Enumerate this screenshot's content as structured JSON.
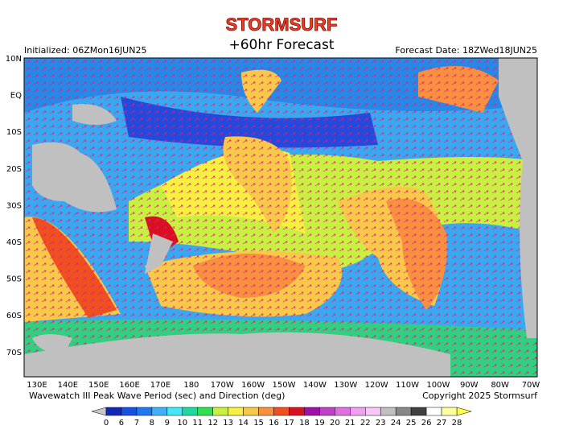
{
  "header": {
    "brand": "STORMSURF",
    "title": "+60hr Forecast",
    "initialized": "Initialized: 06ZMon16JUN25",
    "forecast_date": "Forecast Date: 18ZWed18JUN25"
  },
  "map": {
    "lat_labels": [
      "10N",
      "EQ",
      "10S",
      "20S",
      "30S",
      "40S",
      "50S",
      "60S",
      "70S"
    ],
    "lon_labels": [
      "130E",
      "140E",
      "150E",
      "160E",
      "170E",
      "180",
      "170W",
      "160W",
      "150W",
      "140W",
      "130W",
      "120W",
      "110W",
      "100W",
      "90W",
      "80W",
      "70W"
    ]
  },
  "footer": {
    "caption": "Wavewatch III Peak Wave Period (sec) and Direction (deg)",
    "copyright": "Copyright 2025 Stormsurf"
  },
  "colorbar": {
    "labels": [
      "0",
      "6",
      "7",
      "8",
      "9",
      "10",
      "11",
      "12",
      "13",
      "14",
      "15",
      "16",
      "17",
      "18",
      "19",
      "20",
      "21",
      "22",
      "23",
      "24",
      "25",
      "26",
      "27",
      "28"
    ],
    "colors": [
      "#1028b8",
      "#1850e0",
      "#2078f0",
      "#40b0f8",
      "#40e8f8",
      "#20d8a0",
      "#30e050",
      "#c8f040",
      "#f8f040",
      "#f8c848",
      "#f89040",
      "#f05020",
      "#d81020",
      "#a010a8",
      "#c040c8",
      "#e070e0",
      "#f0a0f0",
      "#f8c8f8",
      "#c0c0c0",
      "#888888",
      "#404040",
      "#ffffff",
      "#ffffa0"
    ],
    "under_color": "#c8c8c8",
    "over_color": "#ffff40"
  }
}
